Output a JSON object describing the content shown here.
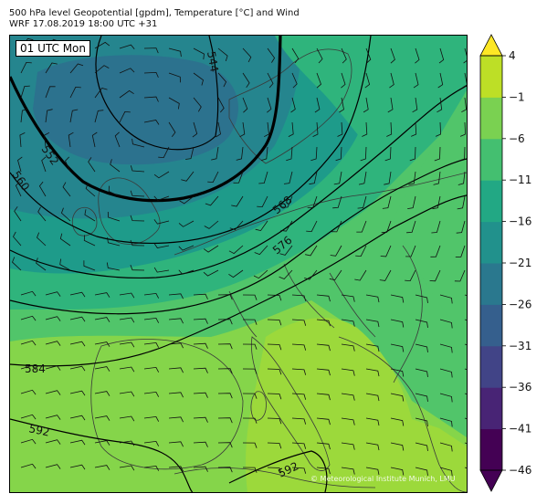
{
  "header": {
    "title_line1": "500 hPa level Geopotential [gpdm], Temperature [°C] and Wind",
    "title_line2": "WRF 17.08.2019 18:00 UTC +31"
  },
  "map": {
    "time_label": "01 UTC Mon",
    "copyright": "© Meteorological Institute Munich, LMU",
    "contour_labels": [
      "544",
      "552",
      "560",
      "568",
      "576",
      "584",
      "592",
      "592"
    ],
    "colors": {
      "c_-31": "#355f8d",
      "c_-26": "#2c728e",
      "c_-21": "#25858e",
      "c_-16": "#1e9b8a",
      "c_-11": "#2fb47c",
      "c_-6": "#51c56a",
      "c_-1": "#85d54a",
      "c_4": "#c2df23",
      "land": "#3a3a3a",
      "isoline": "#000000"
    }
  },
  "colorbar": {
    "tick_labels": [
      "4",
      "−1",
      "−6",
      "−11",
      "−16",
      "−21",
      "−26",
      "−31",
      "−36",
      "−41",
      "−46"
    ],
    "colors": [
      "#440154",
      "#482475",
      "#414487",
      "#355f8d",
      "#2a788e",
      "#21918c",
      "#22a884",
      "#44bf70",
      "#7ad151",
      "#bddf26",
      "#fde725"
    ],
    "extend": "both"
  }
}
